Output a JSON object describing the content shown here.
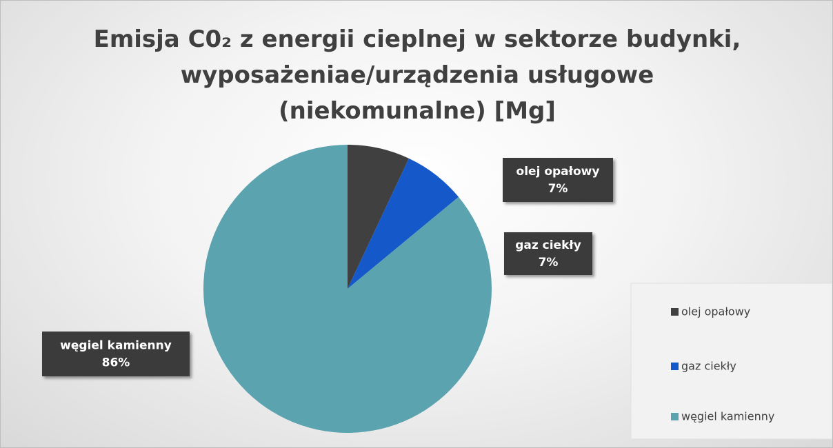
{
  "chart_data": {
    "type": "pie",
    "title": "Emisja C0₂ z energii cieplnej w sektorze budynki, wyposażeniae/urządzenia usługowe (niekomunalne) [Mg]",
    "categories": [
      "olej opałowy",
      "gaz ciekły",
      "węgiel kamienny"
    ],
    "values": [
      7,
      7,
      86
    ],
    "value_labels": [
      "7%",
      "7%",
      "86%"
    ],
    "colors": [
      "#404040",
      "#1558c9",
      "#5ba3af"
    ],
    "legend": "bottom-right"
  }
}
